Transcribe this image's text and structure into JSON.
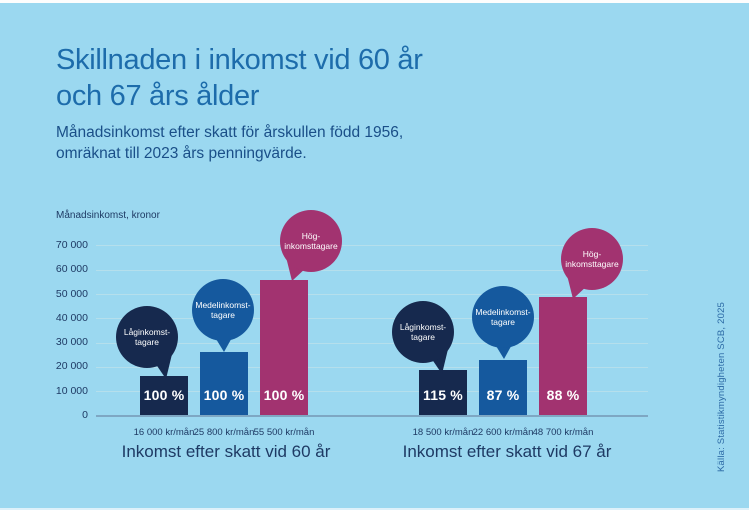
{
  "colors": {
    "background": "#9bd8f0",
    "edge_top": "#fdfdfd",
    "edge_bottom": "#ddf1fa",
    "title_blue": "#1d6cab",
    "subtitle_blue": "#1a4f88",
    "dark_text": "#1e3a64",
    "source_blue": "#2d6ba6",
    "gridline": "#b5dfec",
    "baseline": "#7ea7c3",
    "navy": "#16294e",
    "blue": "#15599e",
    "magenta": "#a23370",
    "bar_label_white": "#ffffff"
  },
  "header": {
    "title_line1": "Skillnaden i inkomst vid 60 år",
    "title_line2": "och 67 års ålder",
    "subtitle_line1": "Månadsinkomst efter skatt för årskullen född 1956,",
    "subtitle_line2": "omräknat till 2023 års penningvärde."
  },
  "source": "Källa: Statistikmyndigheten SCB, 2025",
  "chart_data": {
    "type": "bar",
    "title": "Skillnaden i inkomst vid 60 år och 67 års ålder",
    "subtitle": "Månadsinkomst efter skatt för årskullen född 1956, omräknat till 2023 års penningvärde.",
    "ylabel": "Månadsinkomst, kronor",
    "xlabel": "",
    "ylim": [
      0,
      70000
    ],
    "grid": true,
    "legend": false,
    "ytick_values": [
      70000,
      60000,
      50000,
      40000,
      30000,
      20000,
      10000,
      0
    ],
    "ytick_labels": [
      "70 000",
      "60 000",
      "50 000",
      "40 000",
      "30 000",
      "20 000",
      "10 000",
      "0"
    ],
    "groups": [
      {
        "title": "Inkomst efter skatt vid 60 år",
        "bars": [
          {
            "name": "laginkomsttagare-60",
            "bubble_lines": [
              "Låginkomst-",
              "tagare"
            ],
            "value": 16000,
            "x_label": "16 000 kr/mån",
            "percent": "100 %",
            "color_key": "navy"
          },
          {
            "name": "medelinkomsttagare-60",
            "bubble_lines": [
              "Medelinkomst-",
              "tagare"
            ],
            "value": 25800,
            "x_label": "25 800 kr/mån",
            "percent": "100 %",
            "color_key": "blue"
          },
          {
            "name": "hoginkomsttagare-60",
            "bubble_lines": [
              "Hög-",
              "inkomsttagare"
            ],
            "value": 55500,
            "x_label": "55 500 kr/mån",
            "percent": "100 %",
            "color_key": "magenta"
          }
        ]
      },
      {
        "title": "Inkomst efter skatt vid 67 år",
        "bars": [
          {
            "name": "laginkomsttagare-67",
            "bubble_lines": [
              "Låginkomst-",
              "tagare"
            ],
            "value": 18500,
            "x_label": "18 500 kr/mån",
            "percent": "115 %",
            "color_key": "navy"
          },
          {
            "name": "medelinkomsttagare-67",
            "bubble_lines": [
              "Medelinkomst-",
              "tagare"
            ],
            "value": 22600,
            "x_label": "22 600 kr/mån",
            "percent": "87 %",
            "color_key": "blue"
          },
          {
            "name": "hoginkomsttagare-67",
            "bubble_lines": [
              "Hög-",
              "inkomsttagare"
            ],
            "value": 48700,
            "x_label": "48 700 kr/mån",
            "percent": "88 %",
            "color_key": "magenta"
          }
        ]
      }
    ]
  }
}
